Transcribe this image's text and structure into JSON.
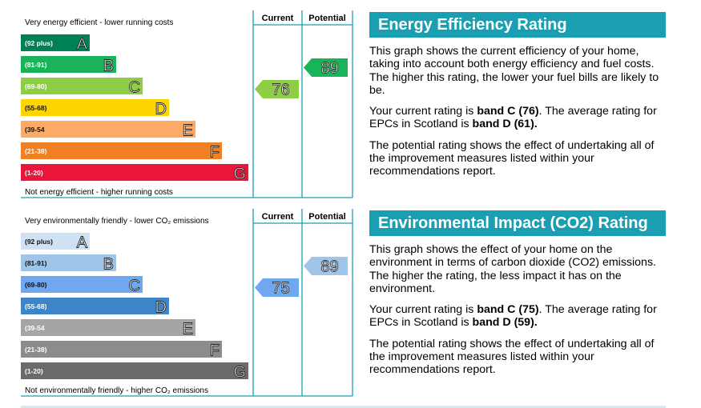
{
  "chart_data": [
    {
      "type": "rating-bands",
      "name": "Energy Efficiency Rating",
      "top_label": "Very energy efficient - lower running costs",
      "bottom_label": "Not energy efficient - higher running costs",
      "column_headers": [
        "Current",
        "Potential"
      ],
      "bands": [
        {
          "letter": "A",
          "range": "(92 plus)",
          "color": "#008054"
        },
        {
          "letter": "B",
          "range": "(81-91)",
          "color": "#19b459"
        },
        {
          "letter": "C",
          "range": "(69-80)",
          "color": "#8dce46"
        },
        {
          "letter": "D",
          "range": "(55-68)",
          "color": "#ffd500"
        },
        {
          "letter": "E",
          "range": "(39-54",
          "color": "#fcaa65"
        },
        {
          "letter": "F",
          "range": "(21-38)",
          "color": "#ef8023"
        },
        {
          "letter": "G",
          "range": "(1-20)",
          "color": "#e9153b"
        }
      ],
      "current": {
        "value": 76,
        "band": "C",
        "color": "#8dce46"
      },
      "potential": {
        "value": 89,
        "band": "B",
        "color": "#19b459"
      }
    },
    {
      "type": "rating-bands",
      "name": "Environmental Impact (CO2) Rating",
      "top_label": "Very environmentally friendly - lower CO₂ emissions",
      "bottom_label": "Not environmentally friendly - higher CO₂ emissions",
      "column_headers": [
        "Current",
        "Potential"
      ],
      "bands": [
        {
          "letter": "A",
          "range": "(92 plus)",
          "color": "#cfe2f3"
        },
        {
          "letter": "B",
          "range": "(81-91)",
          "color": "#9fc5e8"
        },
        {
          "letter": "C",
          "range": "(69-80)",
          "color": "#6fa8f0"
        },
        {
          "letter": "D",
          "range": "(55-68)",
          "color": "#3d85c6"
        },
        {
          "letter": "E",
          "range": "(39-54",
          "color": "#a5a5a5"
        },
        {
          "letter": "F",
          "range": "(21-38)",
          "color": "#8c8c8c"
        },
        {
          "letter": "G",
          "range": "(1-20)",
          "color": "#6b6b6b"
        }
      ],
      "current": {
        "value": 75,
        "band": "C",
        "color": "#6fa8f0"
      },
      "potential": {
        "value": 89,
        "band": "B",
        "color": "#9fc5e8"
      }
    }
  ],
  "panels": {
    "energy": {
      "title": "Energy Efficiency Rating",
      "p1": "This graph shows the current efficiency of your home, taking into account both energy efficiency and fuel costs. The higher this rating, the lower your fuel bills are likely to be.",
      "p2_pre": "Your current rating is ",
      "p2_band_current": "band C (76)",
      "p2_mid": ". The average rating for EPCs in Scotland is ",
      "p2_band_average": "band D (61).",
      "p3": "The potential rating shows the effect of undertaking all of the improvement measures listed within your recommendations report."
    },
    "env": {
      "title": "Environmental Impact (CO2) Rating",
      "p1": "This graph shows the effect of your home on the environment in terms of carbon dioxide (CO2) emissions. The higher the rating, the less impact it has on the environment.",
      "p2_pre": "Your current rating is ",
      "p2_band_current": "band C (75)",
      "p2_mid": ". The average rating for EPCs in Scotland is ",
      "p2_band_average": "band D (59).",
      "p3": "The potential rating shows the effect of undertaking all of the improvement measures listed within your recommendations report."
    }
  },
  "colors": {
    "frame": "#1a9fb2",
    "title_bar": "#1a9fb2"
  }
}
